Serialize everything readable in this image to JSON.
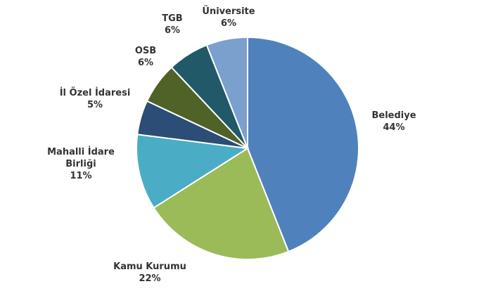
{
  "chart_data": {
    "type": "pie",
    "categories": [
      "Belediye",
      "Kamu Kurumu",
      "Mahalli İdare Birliği",
      "İl Özel İdaresi",
      "OSB",
      "TGB",
      "Üniversite"
    ],
    "values": [
      44,
      22,
      11,
      5,
      6,
      6,
      6
    ],
    "value_labels": [
      "44%",
      "22%",
      "11%",
      "5%",
      "6%",
      "6%",
      "6%"
    ],
    "colors": [
      "#4f81bd",
      "#9bbb59",
      "#4bacc6",
      "#2c4d75",
      "#4f6228",
      "#215968",
      "#7ba0cd"
    ]
  }
}
